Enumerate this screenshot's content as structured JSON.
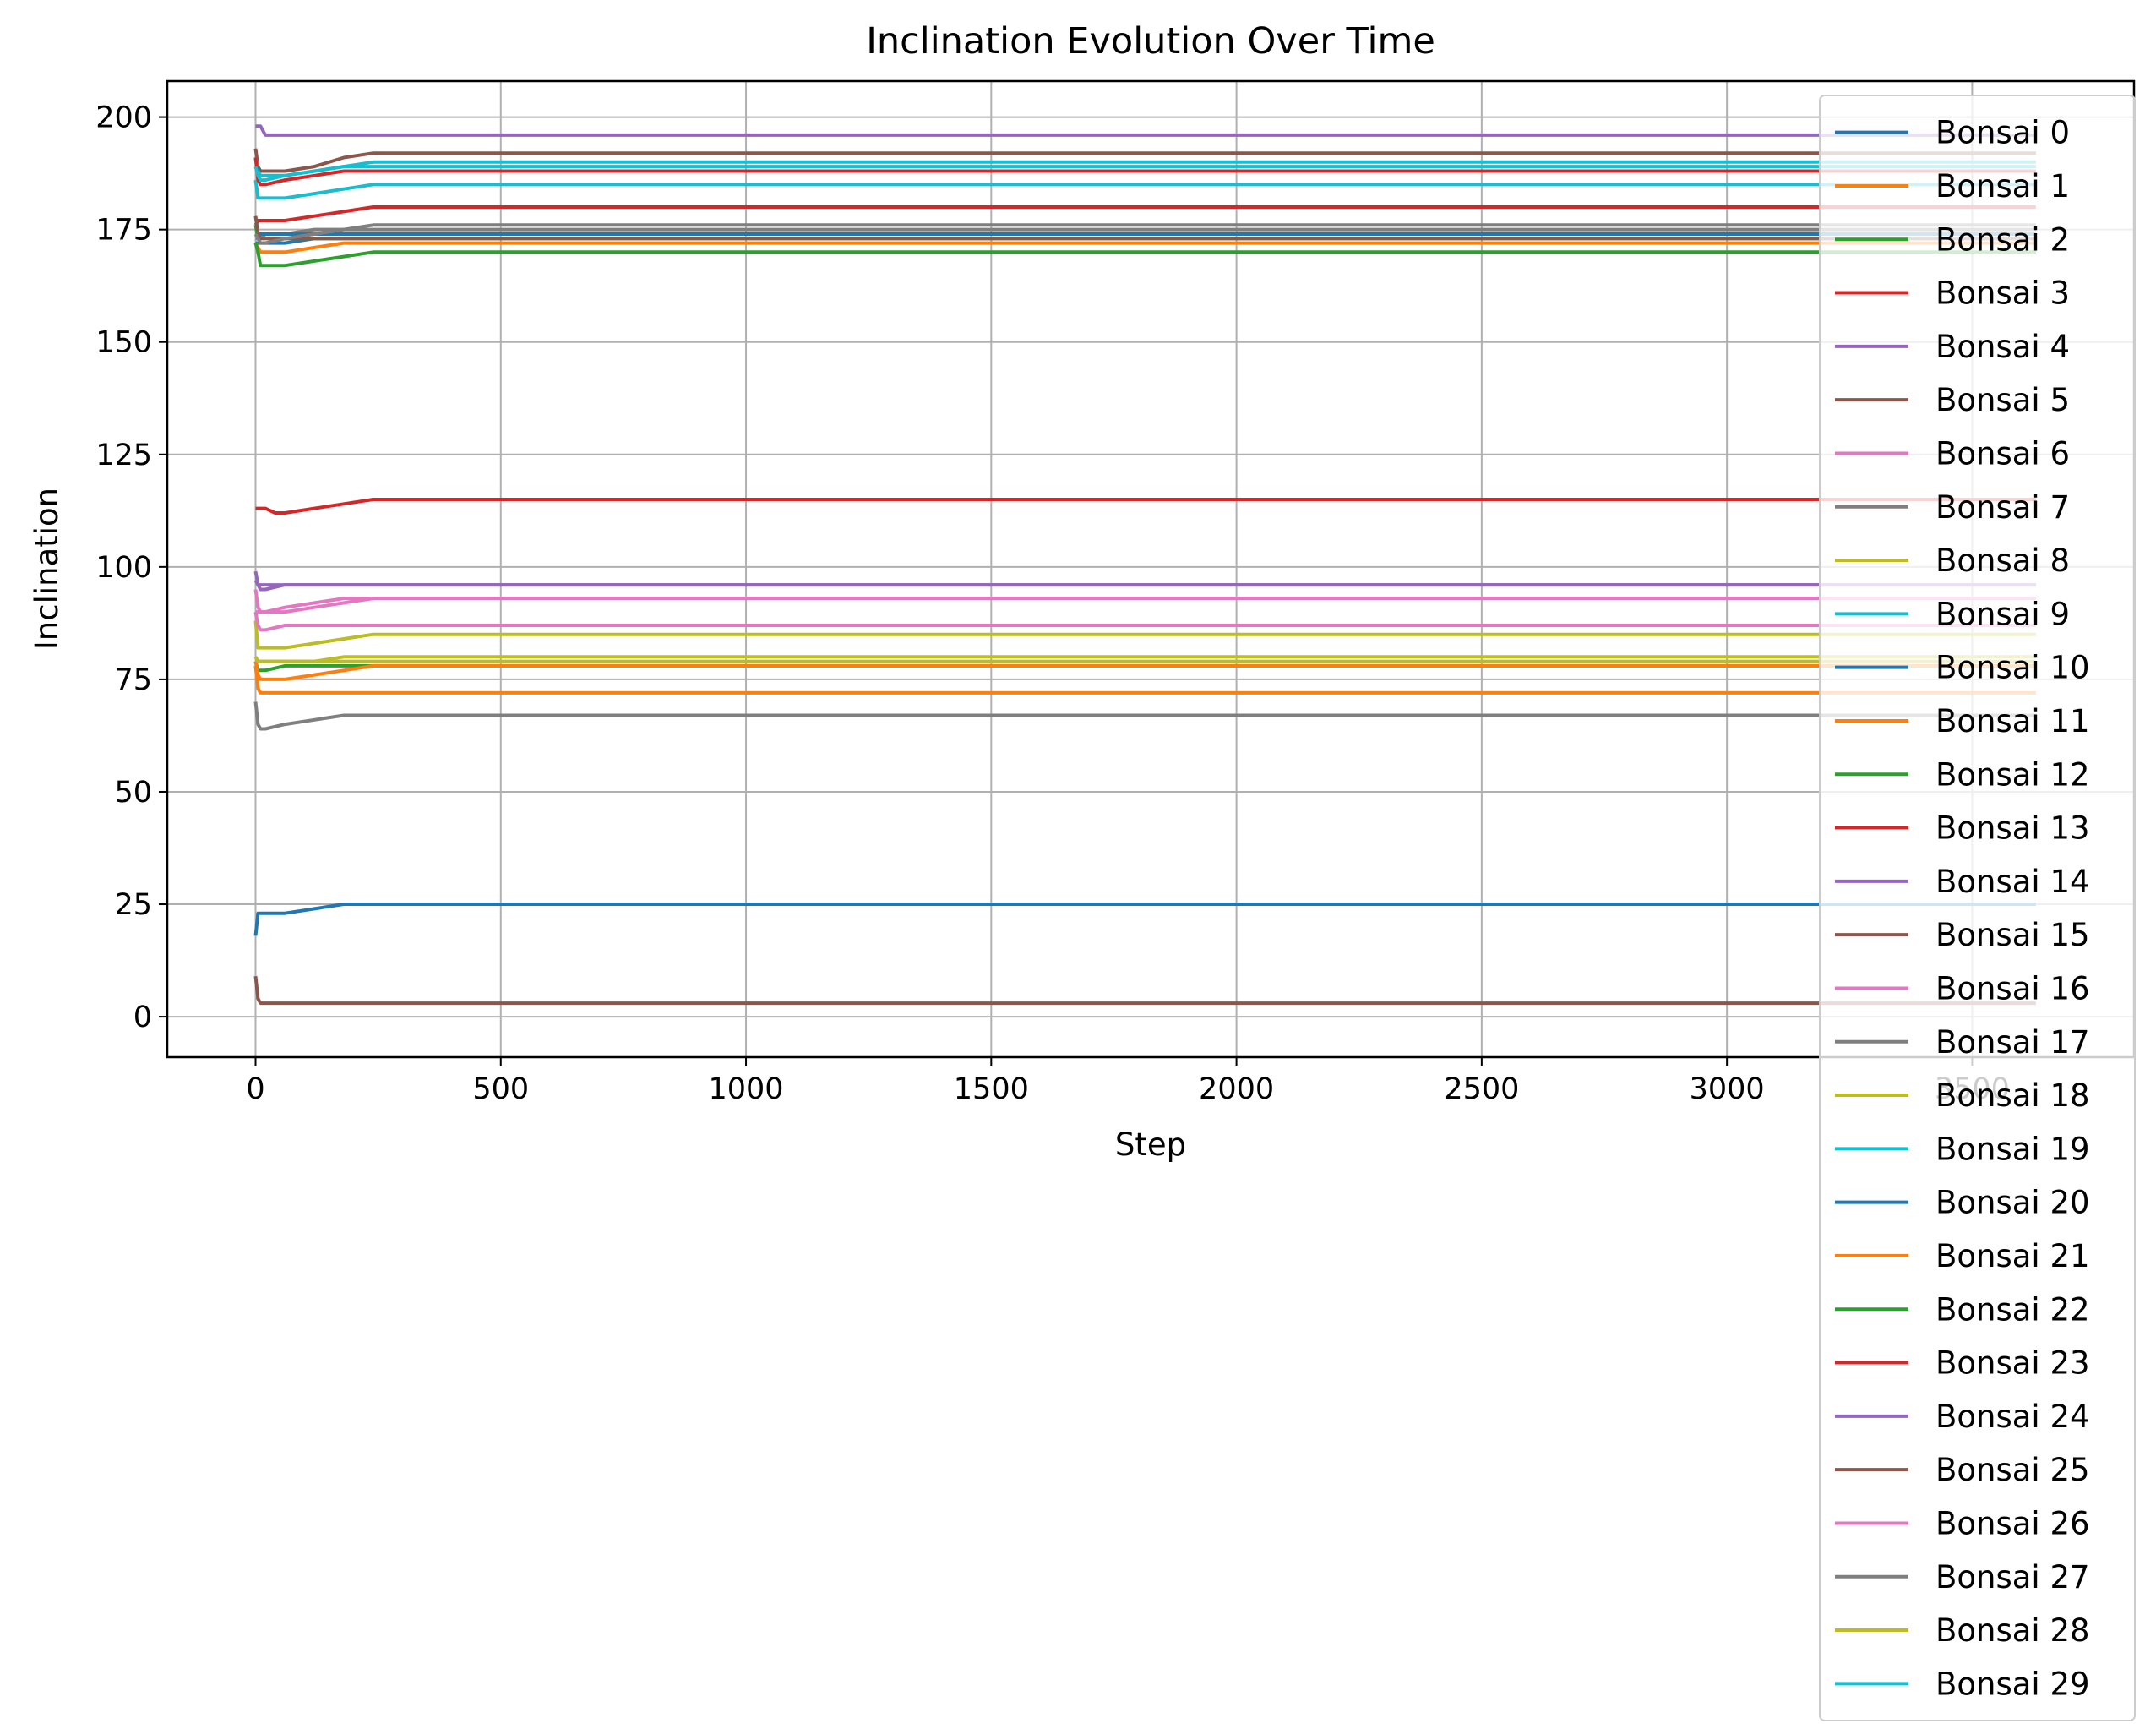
{
  "chart_data": {
    "type": "line",
    "title": "Inclination Evolution Over Time",
    "xlabel": "Step",
    "ylabel": "Inclination",
    "xlim": [
      -180,
      3830
    ],
    "ylim": [
      -9,
      208
    ],
    "xticks": [
      0,
      500,
      1000,
      1500,
      2000,
      2500,
      3000,
      3500
    ],
    "yticks": [
      0,
      25,
      50,
      75,
      100,
      125,
      150,
      175,
      200
    ],
    "grid": true,
    "legend_position": "right",
    "palette": [
      "#1f77b4",
      "#ff7f0e",
      "#2ca02c",
      "#d62728",
      "#9467bd",
      "#8c564b",
      "#e377c2",
      "#7f7f7f",
      "#bcbd22",
      "#17becf"
    ],
    "series": [
      {
        "name": "Bonsai 0",
        "x": [
          0,
          5,
          10,
          20,
          60,
          120,
          180,
          240,
          280,
          3630
        ],
        "y": [
          172,
          172,
          172,
          172,
          172,
          173,
          173,
          173,
          173,
          173
        ]
      },
      {
        "name": "Bonsai 1",
        "x": [
          0,
          5,
          10,
          20,
          60,
          120,
          180,
          240,
          280,
          3630
        ],
        "y": [
          172,
          171,
          170,
          170,
          170,
          171,
          172,
          172,
          172,
          172
        ]
      },
      {
        "name": "Bonsai 2",
        "x": [
          0,
          5,
          10,
          20,
          60,
          120,
          180,
          240,
          280,
          3630
        ],
        "y": [
          172,
          170,
          167,
          167,
          167,
          168,
          169,
          170,
          170,
          170
        ]
      },
      {
        "name": "Bonsai 3",
        "x": [
          0,
          5,
          10,
          20,
          60,
          120,
          180,
          240,
          280,
          3630
        ],
        "y": [
          176,
          177,
          177,
          177,
          177,
          178,
          179,
          180,
          180,
          180
        ]
      },
      {
        "name": "Bonsai 4",
        "x": [
          0,
          5,
          10,
          20,
          60,
          120,
          180,
          240,
          280,
          3630
        ],
        "y": [
          198,
          198,
          198,
          196,
          196,
          196,
          196,
          196,
          196,
          196
        ]
      },
      {
        "name": "Bonsai 5",
        "x": [
          0,
          5,
          10,
          20,
          60,
          120,
          180,
          240,
          280,
          3630
        ],
        "y": [
          193,
          189,
          188,
          188,
          188,
          189,
          191,
          192,
          192,
          192
        ]
      },
      {
        "name": "Bonsai 6",
        "x": [
          0,
          5,
          10,
          20,
          60,
          120,
          180,
          240,
          280,
          3630
        ],
        "y": [
          90,
          90,
          90,
          90,
          91,
          92,
          93,
          93,
          93,
          93
        ]
      },
      {
        "name": "Bonsai 7",
        "x": [
          0,
          5,
          10,
          20,
          60,
          120,
          180,
          240,
          280,
          3630
        ],
        "y": [
          173,
          173,
          173,
          174,
          174,
          175,
          175,
          176,
          176,
          176
        ]
      },
      {
        "name": "Bonsai 8",
        "x": [
          0,
          5,
          10,
          20,
          60,
          120,
          180,
          240,
          280,
          3630
        ],
        "y": [
          88,
          82,
          82,
          82,
          82,
          83,
          84,
          85,
          85,
          85
        ]
      },
      {
        "name": "Bonsai 9",
        "x": [
          0,
          5,
          10,
          20,
          60,
          120,
          180,
          240,
          280,
          3630
        ],
        "y": [
          186,
          182,
          182,
          182,
          182,
          183,
          184,
          185,
          185,
          185
        ]
      },
      {
        "name": "Bonsai 10",
        "x": [
          0,
          5,
          10,
          20,
          60,
          120,
          180,
          240,
          280,
          3630
        ],
        "y": [
          18,
          23,
          23,
          23,
          23,
          24,
          25,
          25,
          25,
          25
        ]
      },
      {
        "name": "Bonsai 11",
        "x": [
          0,
          5,
          10,
          20,
          60,
          120,
          180,
          240,
          280,
          3630
        ],
        "y": [
          78,
          73,
          72,
          72,
          72,
          72,
          72,
          72,
          72,
          72
        ]
      },
      {
        "name": "Bonsai 12",
        "x": [
          0,
          5,
          10,
          20,
          60,
          120,
          180,
          240,
          280,
          3630
        ],
        "y": [
          79,
          77,
          77,
          77,
          78,
          78,
          78,
          78,
          78,
          78
        ]
      },
      {
        "name": "Bonsai 13",
        "x": [
          0,
          5,
          10,
          20,
          40,
          60,
          120,
          180,
          240,
          280,
          3630
        ],
        "y": [
          113,
          113,
          113,
          113,
          112,
          112,
          113,
          114,
          115,
          115,
          115
        ]
      },
      {
        "name": "Bonsai 14",
        "x": [
          0,
          5,
          10,
          20,
          60,
          120,
          180,
          240,
          280,
          3630
        ],
        "y": [
          99,
          96,
          95,
          95,
          96,
          96,
          96,
          96,
          96,
          96
        ]
      },
      {
        "name": "Bonsai 15",
        "x": [
          0,
          5,
          10,
          20,
          60,
          120,
          180,
          240,
          280,
          3630
        ],
        "y": [
          9,
          4,
          3,
          3,
          3,
          3,
          3,
          3,
          3,
          3
        ]
      },
      {
        "name": "Bonsai 16",
        "x": [
          0,
          5,
          10,
          20,
          60,
          120,
          180,
          240,
          280,
          3630
        ],
        "y": [
          90,
          87,
          86,
          86,
          87,
          87,
          87,
          87,
          87,
          87
        ]
      },
      {
        "name": "Bonsai 17",
        "x": [
          0,
          5,
          10,
          20,
          60,
          120,
          180,
          240,
          280,
          3630
        ],
        "y": [
          70,
          65,
          64,
          64,
          65,
          66,
          67,
          67,
          67,
          67
        ]
      },
      {
        "name": "Bonsai 18",
        "x": [
          0,
          5,
          10,
          20,
          60,
          120,
          180,
          240,
          280,
          3630
        ],
        "y": [
          80,
          79,
          79,
          79,
          79,
          79,
          80,
          80,
          80,
          80
        ]
      },
      {
        "name": "Bonsai 19",
        "x": [
          0,
          5,
          10,
          20,
          60,
          120,
          180,
          240,
          280,
          3630
        ],
        "y": [
          191,
          188,
          187,
          187,
          187,
          188,
          189,
          190,
          190,
          190
        ]
      },
      {
        "name": "Bonsai 20",
        "x": [
          0,
          5,
          10,
          20,
          60,
          120,
          180,
          240,
          280,
          3630
        ],
        "y": [
          174,
          174,
          174,
          174,
          174,
          174,
          174,
          174,
          174,
          174
        ]
      },
      {
        "name": "Bonsai 21",
        "x": [
          0,
          5,
          10,
          20,
          60,
          120,
          180,
          240,
          280,
          3630
        ],
        "y": [
          79,
          76,
          75,
          75,
          75,
          76,
          77,
          78,
          78,
          78
        ]
      },
      {
        "name": "Bonsai 22",
        "x": [
          0,
          5,
          10,
          20,
          60,
          120,
          180,
          240,
          280,
          3630
        ],
        "y": [
          176,
          173,
          173,
          173,
          173,
          173,
          173,
          173,
          173,
          173
        ]
      },
      {
        "name": "Bonsai 23",
        "x": [
          0,
          5,
          10,
          20,
          60,
          120,
          180,
          240,
          280,
          3630
        ],
        "y": [
          191,
          186,
          185,
          185,
          186,
          187,
          188,
          188,
          188,
          188
        ]
      },
      {
        "name": "Bonsai 24",
        "x": [
          0,
          5,
          10,
          20,
          60,
          120,
          180,
          240,
          280,
          3630
        ],
        "y": [
          97,
          96,
          96,
          96,
          96,
          96,
          96,
          96,
          96,
          96
        ]
      },
      {
        "name": "Bonsai 25",
        "x": [
          0,
          5,
          10,
          20,
          60,
          120,
          180,
          240,
          280,
          3630
        ],
        "y": [
          178,
          174,
          173,
          173,
          173,
          173,
          173,
          173,
          173,
          173
        ]
      },
      {
        "name": "Bonsai 26",
        "x": [
          0,
          5,
          10,
          20,
          60,
          120,
          180,
          240,
          280,
          3630
        ],
        "y": [
          95,
          91,
          90,
          90,
          90,
          91,
          92,
          93,
          93,
          93
        ]
      },
      {
        "name": "Bonsai 27",
        "x": [
          0,
          5,
          10,
          20,
          60,
          120,
          180,
          240,
          280,
          3630
        ],
        "y": [
          174,
          173,
          172,
          172,
          173,
          174,
          175,
          175,
          175,
          175
        ]
      },
      {
        "name": "Bonsai 28",
        "x": [
          0,
          5,
          10,
          20,
          60,
          120,
          180,
          240,
          280,
          3630
        ],
        "y": [
          80,
          79,
          79,
          79,
          79,
          79,
          79,
          79,
          79,
          79
        ]
      },
      {
        "name": "Bonsai 29",
        "x": [
          0,
          5,
          10,
          20,
          60,
          120,
          180,
          240,
          280,
          3630
        ],
        "y": [
          189,
          187,
          186,
          186,
          187,
          188,
          189,
          189,
          189,
          189
        ]
      }
    ]
  }
}
